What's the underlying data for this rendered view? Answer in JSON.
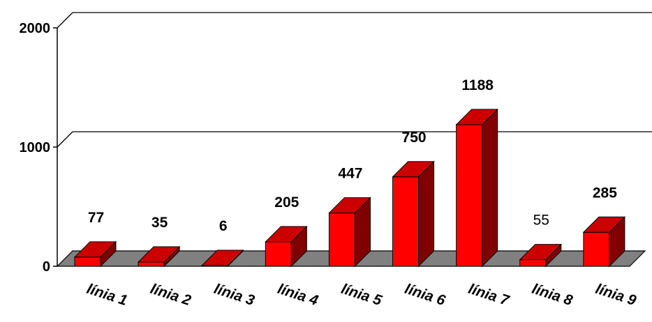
{
  "chart_data": {
    "type": "bar",
    "categories": [
      "línia 1",
      "línia 2",
      "línia 3",
      "línia 4",
      "línia 5",
      "línia 6",
      "línia 7",
      "línia 8",
      "línia 9"
    ],
    "values": [
      77,
      35,
      6,
      205,
      447,
      750,
      1188,
      55,
      285
    ],
    "data_labels": [
      "77",
      "35",
      "6",
      "205",
      "447",
      "750",
      "1188",
      "55",
      "285"
    ],
    "ylim": [
      0,
      2000
    ],
    "yticks": [
      0,
      1000,
      2000
    ],
    "ytick_labels": [
      "0",
      "1000",
      "2000"
    ],
    "grid": true,
    "legend": "none",
    "colors": {
      "bar_front": "#ff0000",
      "bar_top": "#cc0000",
      "bar_side": "#800000",
      "floor": "#808080"
    }
  }
}
